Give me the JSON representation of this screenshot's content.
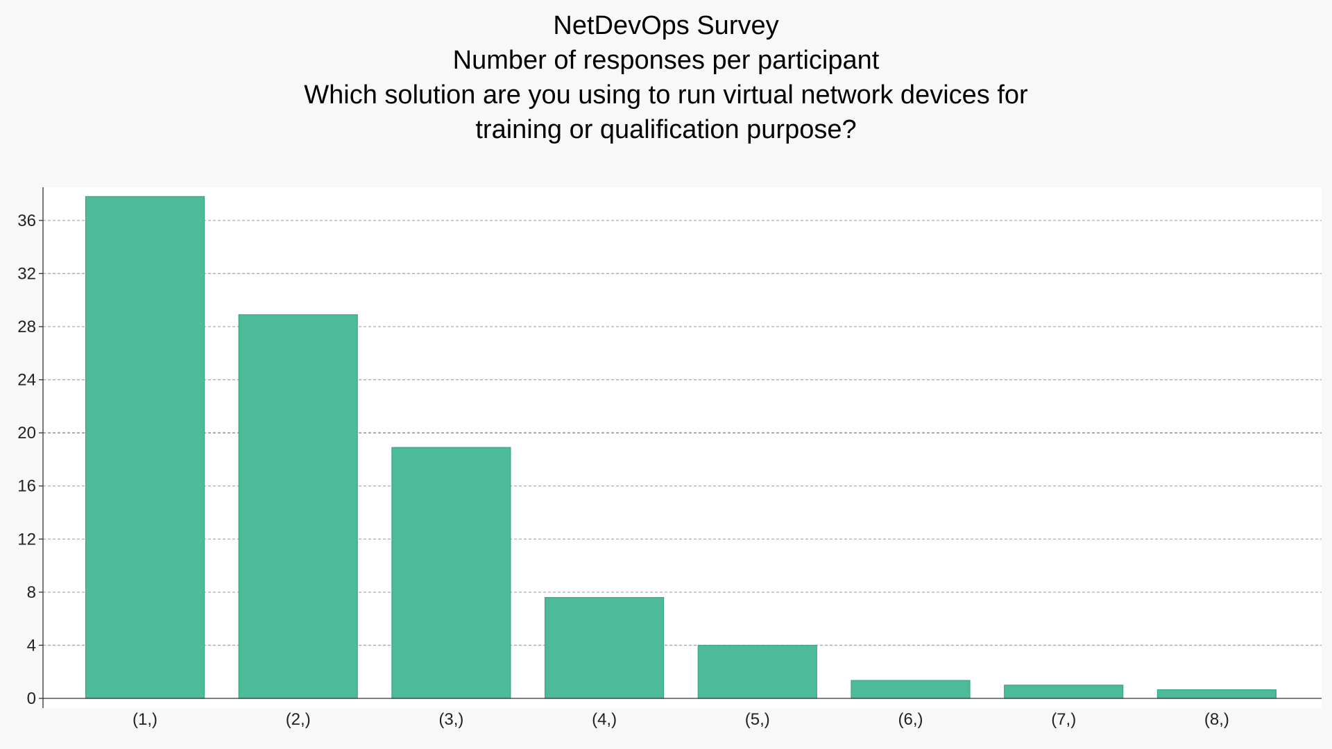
{
  "chart_data": {
    "type": "bar",
    "title_lines": [
      "NetDevOps Survey",
      "Number of responses per participant",
      "Which solution are you using to run virtual network devices for",
      "training or qualification purpose?"
    ],
    "categories": [
      "(1,)",
      "(2,)",
      "(3,)",
      "(4,)",
      "(5,)",
      "(6,)",
      "(7,)",
      "(8,)"
    ],
    "values": [
      37.8,
      28.9,
      18.9,
      7.6,
      4.0,
      1.35,
      1.0,
      0.65
    ],
    "yticks": [
      0,
      4,
      8,
      12,
      16,
      20,
      24,
      28,
      32,
      36
    ],
    "ylim": [
      0,
      38.5
    ],
    "xlabel": "",
    "ylabel": "",
    "grid": true,
    "bar_color": "#4dbb9a",
    "bar_edge_color": "#3aa583"
  }
}
